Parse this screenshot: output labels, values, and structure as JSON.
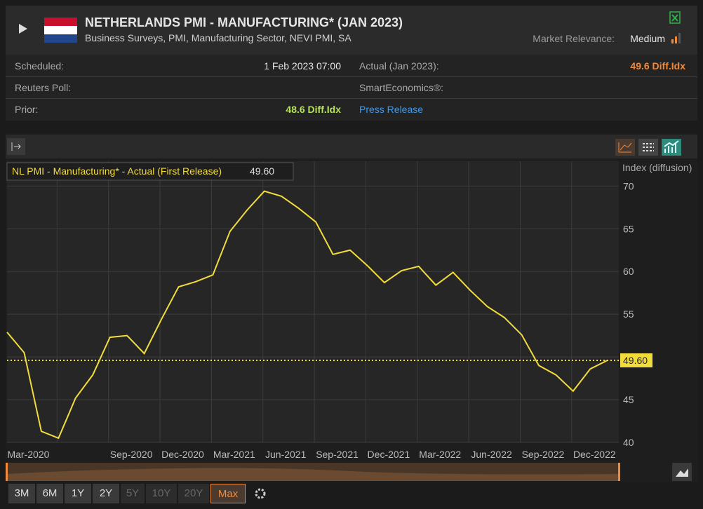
{
  "header": {
    "title": "NETHERLANDS PMI - MANUFACTURING* (JAN 2023)",
    "subtitle": "Business Surveys, PMI, Manufacturing Sector, NEVI PMI, SA",
    "relevance_label": "Market Relevance:",
    "relevance": "Medium"
  },
  "info": {
    "scheduled_label": "Scheduled:",
    "scheduled": "1 Feb 2023 07:00",
    "actual_label": "Actual (Jan 2023):",
    "actual": "49.6 Diff.Idx",
    "poll_label": "Reuters Poll:",
    "smart_label": "SmartEconomics®:",
    "prior_label": "Prior:",
    "prior": "48.6 Diff.Idx",
    "press": "Press Release"
  },
  "chart_data": {
    "type": "line",
    "y_label": "Index (diffusion)",
    "categories": [
      null,
      "Mar-2020",
      null,
      null,
      null,
      null,
      null,
      "Sep-2020",
      null,
      null,
      "Dec-2020",
      null,
      null,
      "Mar-2021",
      null,
      null,
      "Jun-2021",
      null,
      null,
      "Sep-2021",
      null,
      null,
      "Dec-2021",
      null,
      null,
      "Mar-2022",
      null,
      null,
      "Jun-2022",
      null,
      null,
      "Sep-2022",
      null,
      null,
      "Dec-2022",
      null
    ],
    "series": [
      {
        "name": "NL PMI - Manufacturing* - Actual (First Release)",
        "color": "#f2dc3c",
        "values": [
          52.9,
          50.5,
          41.3,
          40.5,
          45.2,
          47.9,
          52.3,
          52.5,
          50.4,
          54.4,
          58.2,
          58.8,
          59.6,
          64.7,
          67.2,
          69.4,
          68.8,
          67.4,
          65.8,
          62.0,
          62.5,
          60.7,
          58.7,
          60.1,
          60.6,
          58.4,
          59.9,
          57.8,
          55.9,
          54.6,
          52.6,
          49.0,
          47.9,
          46.0,
          48.6,
          49.6
        ],
        "value_labels": [
          null,
          null,
          null,
          null,
          null,
          null,
          null,
          null,
          null,
          null,
          null,
          null,
          null,
          null,
          null,
          null,
          null,
          null,
          null,
          null,
          null,
          null,
          null,
          null,
          null,
          null,
          null,
          null,
          null,
          null,
          null,
          null,
          null,
          null,
          null,
          "49.60"
        ]
      }
    ],
    "ylim": [
      40,
      72.9
    ],
    "yticks": [
      40,
      45,
      50,
      55,
      60,
      65,
      70
    ],
    "grid": true
  },
  "range_buttons": [
    "3M",
    "6M",
    "1Y",
    "2Y",
    "5Y",
    "10Y",
    "20Y",
    "Max"
  ]
}
